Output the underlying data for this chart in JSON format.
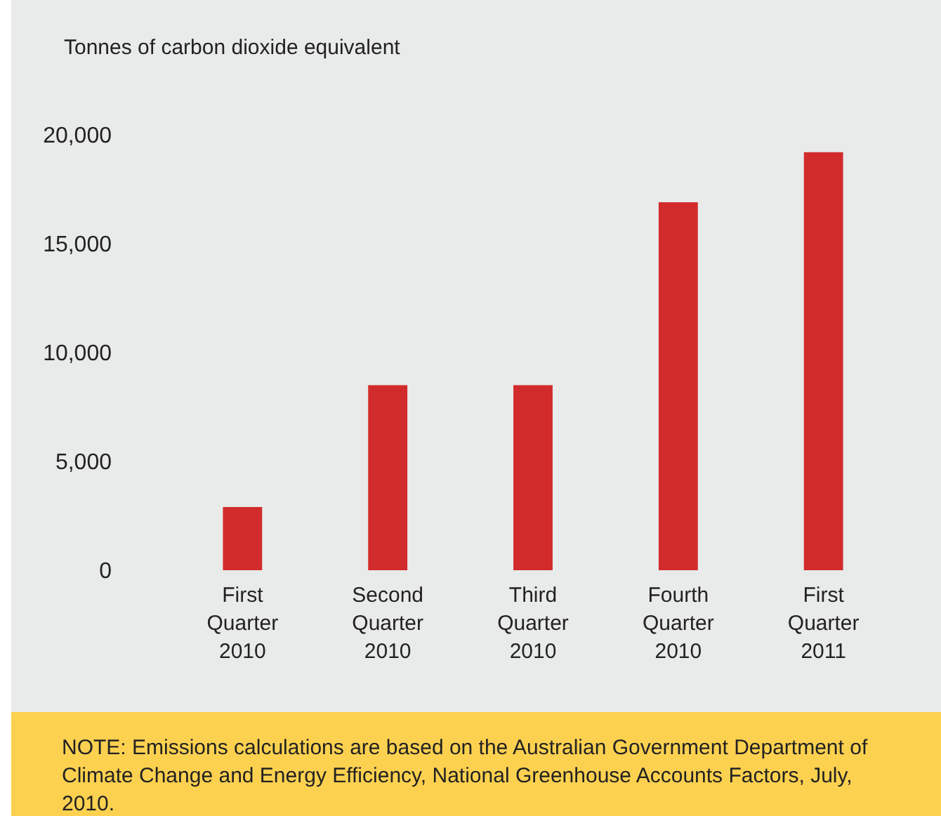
{
  "chart_data": {
    "type": "bar",
    "ylabel": "Tonnes of carbon dioxide equivalent",
    "categories": [
      "First Quarter 2010",
      "Second Quarter 2010",
      "Third Quarter 2010",
      "Fourth Quarter 2010",
      "First Quarter 2011"
    ],
    "values": [
      2900,
      8500,
      8500,
      16900,
      19200
    ],
    "color": "#d22b2b",
    "ylim": [
      0,
      20000
    ],
    "yticks": [
      0,
      {
        "value": 5000,
        "label": "5,000"
      },
      {
        "value": 10000,
        "label": "10,000"
      },
      {
        "value": 15000,
        "label": "15,000"
      },
      {
        "value": 20000,
        "label": "20,000"
      }
    ],
    "grid": false,
    "annotations": [
      "NOTE: Emissions calculations are based on the Australian Government Department of Climate Change and Energy Efficiency, National Greenhouse Accounts Factors, July, 2010."
    ]
  }
}
